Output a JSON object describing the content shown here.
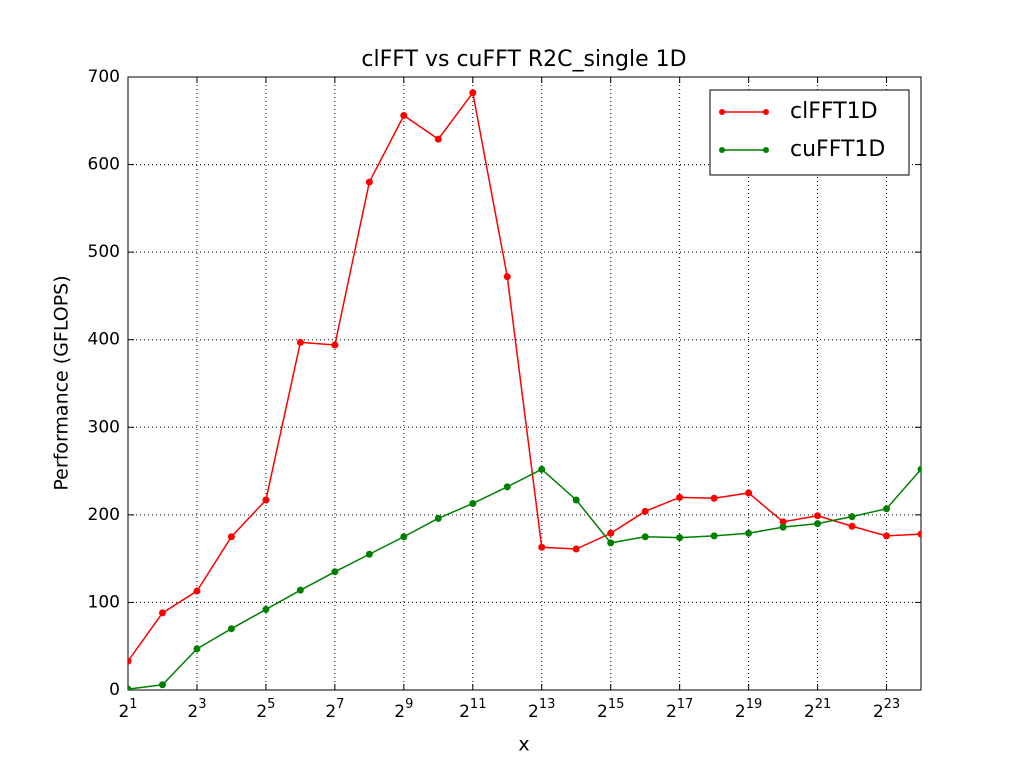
{
  "chart_data": {
    "type": "line",
    "title": "clFFT vs cuFFT R2C_single 1D",
    "xlabel": "x",
    "ylabel": "Performance (GFLOPS)",
    "x": [
      2,
      4,
      8,
      16,
      32,
      64,
      128,
      256,
      512,
      1024,
      2048,
      4096,
      8192,
      16384,
      32768,
      65536,
      131072,
      262144,
      524288,
      1048576,
      2097152,
      4194304,
      8388608,
      16777216
    ],
    "series": [
      {
        "name": "clFFT1D",
        "color": "#ff0000",
        "values": [
          33,
          88,
          113,
          175,
          217,
          397,
          394,
          580,
          656,
          629,
          682,
          472,
          163,
          161,
          179,
          204,
          220,
          219,
          225,
          192,
          199,
          187,
          176,
          178
        ]
      },
      {
        "name": "cuFFT1D",
        "color": "#008000",
        "values": [
          1,
          6,
          47,
          70,
          92,
          114,
          135,
          155,
          175,
          196,
          213,
          232,
          252,
          217,
          168,
          175,
          174,
          176,
          179,
          186,
          190,
          198,
          207,
          252
        ]
      }
    ],
    "xscale": "log",
    "xlog_base": 2,
    "xlim": [
      2,
      16777216
    ],
    "xticks": [
      {
        "value": 2,
        "label": "2^1"
      },
      {
        "value": 8,
        "label": "2^3"
      },
      {
        "value": 32,
        "label": "2^5"
      },
      {
        "value": 128,
        "label": "2^7"
      },
      {
        "value": 512,
        "label": "2^9"
      },
      {
        "value": 2048,
        "label": "2^11"
      },
      {
        "value": 8192,
        "label": "2^13"
      },
      {
        "value": 32768,
        "label": "2^15"
      },
      {
        "value": 131072,
        "label": "2^17"
      },
      {
        "value": 524288,
        "label": "2^19"
      },
      {
        "value": 2097152,
        "label": "2^21"
      },
      {
        "value": 8388608,
        "label": "2^23"
      }
    ],
    "ylim": [
      0,
      700
    ],
    "yticks": [
      0,
      100,
      200,
      300,
      400,
      500,
      600,
      700
    ],
    "grid": true,
    "legend": "upper right"
  }
}
